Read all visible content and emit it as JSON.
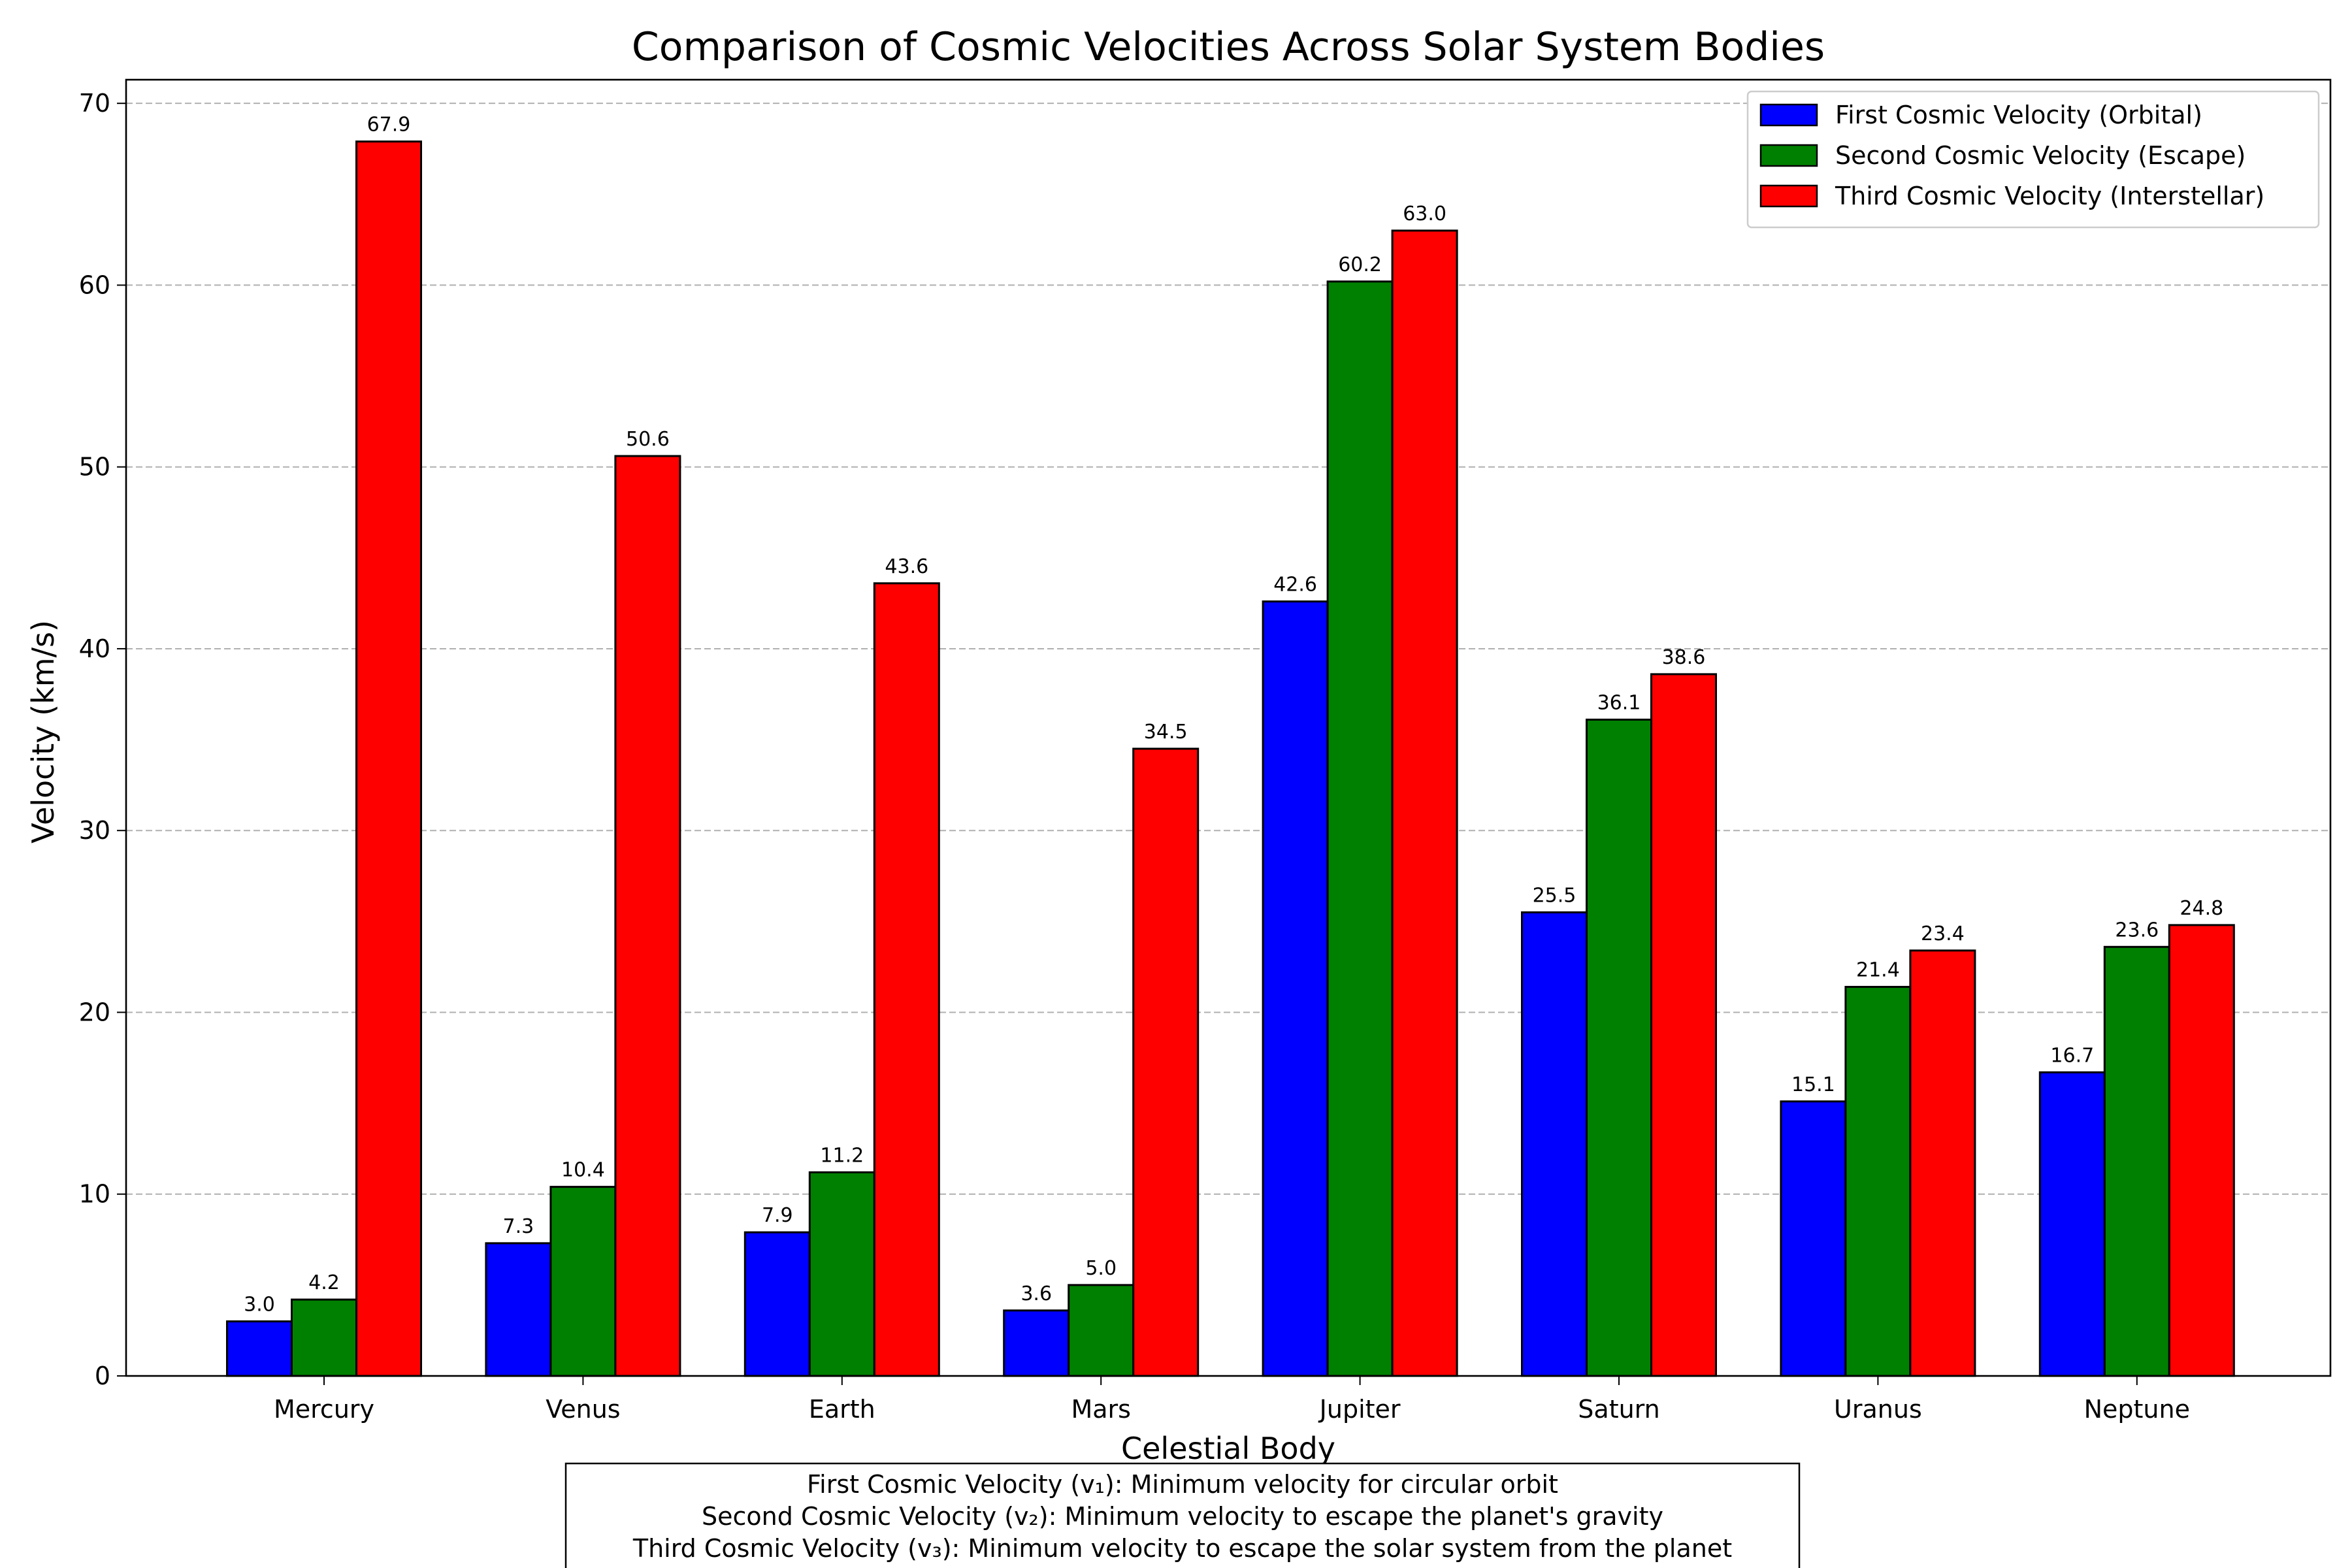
{
  "chart_data": {
    "type": "bar",
    "title": "Comparison of Cosmic Velocities Across Solar System Bodies",
    "xlabel": "Celestial Body",
    "ylabel": "Velocity (km/s)",
    "ylim": [
      0,
      71.3
    ],
    "yticks": [
      0,
      10,
      20,
      30,
      40,
      50,
      60,
      70
    ],
    "grid": "horizontal dashed",
    "legend_position": "top-right",
    "categories": [
      "Mercury",
      "Venus",
      "Earth",
      "Mars",
      "Jupiter",
      "Saturn",
      "Uranus",
      "Neptune"
    ],
    "series": [
      {
        "name": "First Cosmic Velocity (Orbital)",
        "color": "#0000ff",
        "values": [
          3.0,
          7.3,
          7.9,
          3.6,
          42.6,
          25.5,
          15.1,
          16.7
        ],
        "labels": [
          "3.0",
          "7.3",
          "7.9",
          "3.6",
          "42.6",
          "25.5",
          "15.1",
          "16.7"
        ]
      },
      {
        "name": "Second Cosmic Velocity (Escape)",
        "color": "#008000",
        "values": [
          4.2,
          10.4,
          11.2,
          5.0,
          60.2,
          36.1,
          21.4,
          23.6
        ],
        "labels": [
          "4.2",
          "10.4",
          "11.2",
          "5.0",
          "60.2",
          "36.1",
          "21.4",
          "23.6"
        ]
      },
      {
        "name": "Third Cosmic Velocity (Interstellar)",
        "color": "#ff0000",
        "values": [
          67.9,
          50.6,
          43.6,
          34.5,
          63.0,
          38.6,
          23.4,
          24.8
        ],
        "labels": [
          "67.9",
          "50.6",
          "43.6",
          "34.5",
          "63.0",
          "38.6",
          "23.4",
          "24.8"
        ]
      }
    ],
    "note_lines": [
      "First Cosmic Velocity (v₁): Minimum velocity for circular orbit",
      "Second Cosmic Velocity (v₂): Minimum velocity to escape the planet's gravity",
      "Third Cosmic Velocity (v₃): Minimum velocity to escape the solar system from the planet"
    ]
  }
}
